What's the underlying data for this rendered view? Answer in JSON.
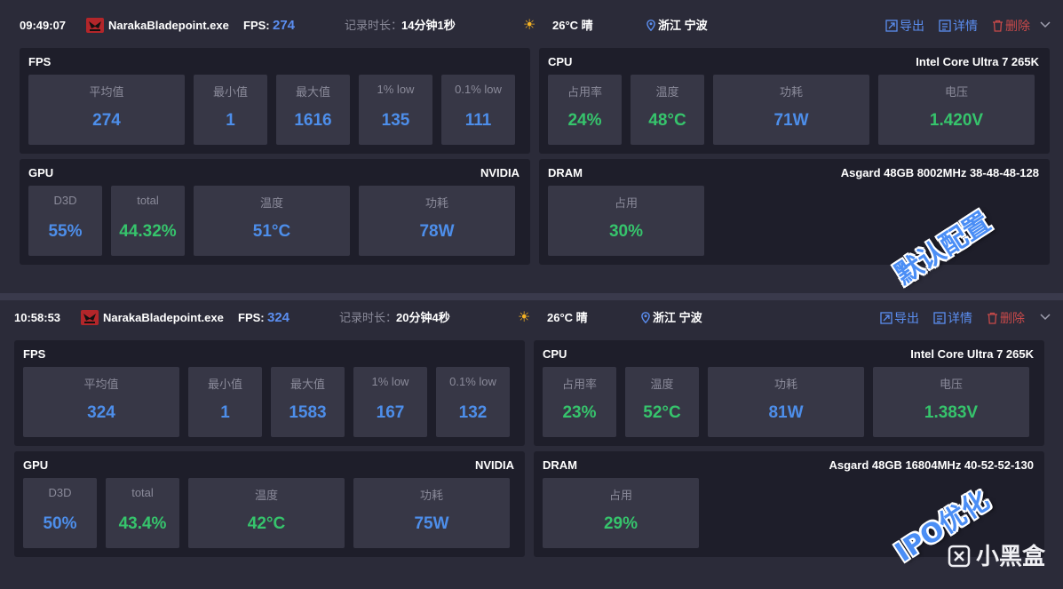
{
  "sessions": [
    {
      "time": "09:49:07",
      "app": "NarakaBladepoint.exe",
      "fps_label": "FPS:",
      "fps": "274",
      "duration_label": "记录时长：",
      "duration": "14分钟1秒",
      "weather": "26°C 晴",
      "weather_icon": "sun-icon",
      "location": "浙江 宁波",
      "actions": {
        "export": "导出",
        "details": "详情",
        "delete": "删除"
      },
      "fps_panel": {
        "title": "FPS",
        "cards": [
          {
            "label": "平均值",
            "value": "274"
          },
          {
            "label": "最小值",
            "value": "1"
          },
          {
            "label": "最大值",
            "value": "1616"
          },
          {
            "label": "1% low",
            "value": "135"
          },
          {
            "label": "0.1% low",
            "value": "111"
          }
        ]
      },
      "cpu_panel": {
        "title": "CPU",
        "model": "Intel Core Ultra 7 265K",
        "cards": [
          {
            "label": "占用率",
            "value": "24%"
          },
          {
            "label": "温度",
            "value": "48°C"
          },
          {
            "label": "功耗",
            "value": "71W"
          },
          {
            "label": "电压",
            "value": "1.420V"
          }
        ]
      },
      "gpu_panel": {
        "title": "GPU",
        "model": "NVIDIA",
        "cards": [
          {
            "label": "D3D",
            "value": "55%"
          },
          {
            "label": "total",
            "value": "44.32%"
          },
          {
            "label": "温度",
            "value": "51°C"
          },
          {
            "label": "功耗",
            "value": "78W"
          }
        ]
      },
      "dram_panel": {
        "title": "DRAM",
        "model": "Asgard 48GB 8002MHz 38-48-48-128",
        "cards": [
          {
            "label": "占用",
            "value": "30%"
          }
        ]
      },
      "watermark": "默认配置"
    },
    {
      "time": "10:58:53",
      "app": "NarakaBladepoint.exe",
      "fps_label": "FPS:",
      "fps": "324",
      "duration_label": "记录时长：",
      "duration": "20分钟4秒",
      "weather": "26°C 晴",
      "weather_icon": "sun-icon",
      "location": "浙江 宁波",
      "actions": {
        "export": "导出",
        "details": "详情",
        "delete": "删除"
      },
      "fps_panel": {
        "title": "FPS",
        "cards": [
          {
            "label": "平均值",
            "value": "324"
          },
          {
            "label": "最小值",
            "value": "1"
          },
          {
            "label": "最大值",
            "value": "1583"
          },
          {
            "label": "1% low",
            "value": "167"
          },
          {
            "label": "0.1% low",
            "value": "132"
          }
        ]
      },
      "cpu_panel": {
        "title": "CPU",
        "model": "Intel Core Ultra 7 265K",
        "cards": [
          {
            "label": "占用率",
            "value": "23%"
          },
          {
            "label": "温度",
            "value": "52°C"
          },
          {
            "label": "功耗",
            "value": "81W"
          },
          {
            "label": "电压",
            "value": "1.383V"
          }
        ]
      },
      "gpu_panel": {
        "title": "GPU",
        "model": "NVIDIA",
        "cards": [
          {
            "label": "D3D",
            "value": "50%"
          },
          {
            "label": "total",
            "value": "43.4%"
          },
          {
            "label": "温度",
            "value": "42°C"
          },
          {
            "label": "功耗",
            "value": "75W"
          }
        ]
      },
      "dram_panel": {
        "title": "DRAM",
        "model": "Asgard 48GB 16804MHz 40-52-52-130",
        "cards": [
          {
            "label": "占用",
            "value": "29%"
          }
        ]
      },
      "watermark": "IPO优化"
    }
  ],
  "brand": "小黑盒",
  "colors": {
    "blue": "#4d8eea",
    "green": "#36c46c",
    "danger": "#c84a4a",
    "accent": "#5b8ef0"
  }
}
